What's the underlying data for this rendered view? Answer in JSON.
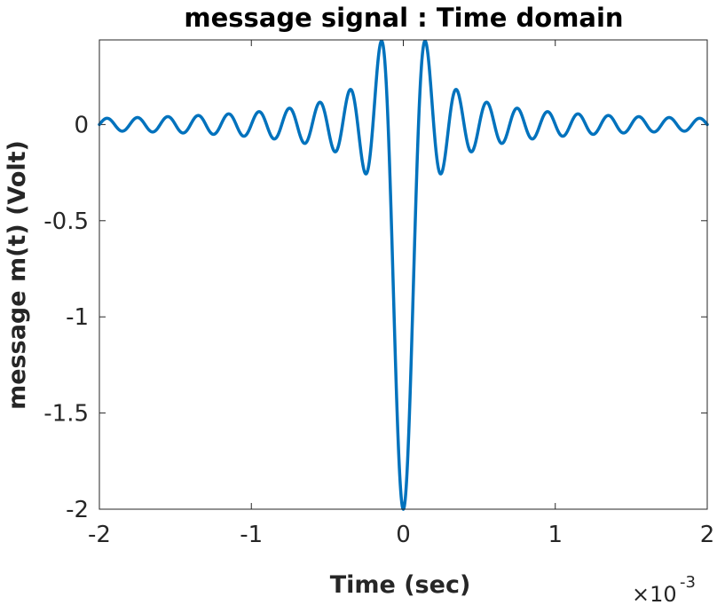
{
  "chart_data": {
    "type": "line",
    "title": "message signal : Time domain",
    "xlabel": "Time (sec)",
    "ylabel": "message  m(t)  (Volt)",
    "x_exponent_base": "×10",
    "x_exponent_power": "-3",
    "xlim": [
      -0.002,
      0.002
    ],
    "ylim": [
      -2,
      0.44
    ],
    "x_ticks": [
      -0.002,
      -0.001,
      0,
      0.001,
      0.002
    ],
    "x_tick_labels": [
      "-2",
      "-1",
      "0",
      "1",
      "2"
    ],
    "y_ticks": [
      -2,
      -1.5,
      -1,
      -0.5,
      0
    ],
    "y_tick_labels": [
      "-2",
      "-1.5",
      "-1",
      "-0.5",
      "0"
    ],
    "grid": false,
    "series": [
      {
        "color": "#0072BD",
        "formula": "m(t) = -2*sinc(2*pi*5000*t)",
        "t_start": -0.002,
        "t_end": 0.002,
        "samples": 2001
      }
    ]
  }
}
